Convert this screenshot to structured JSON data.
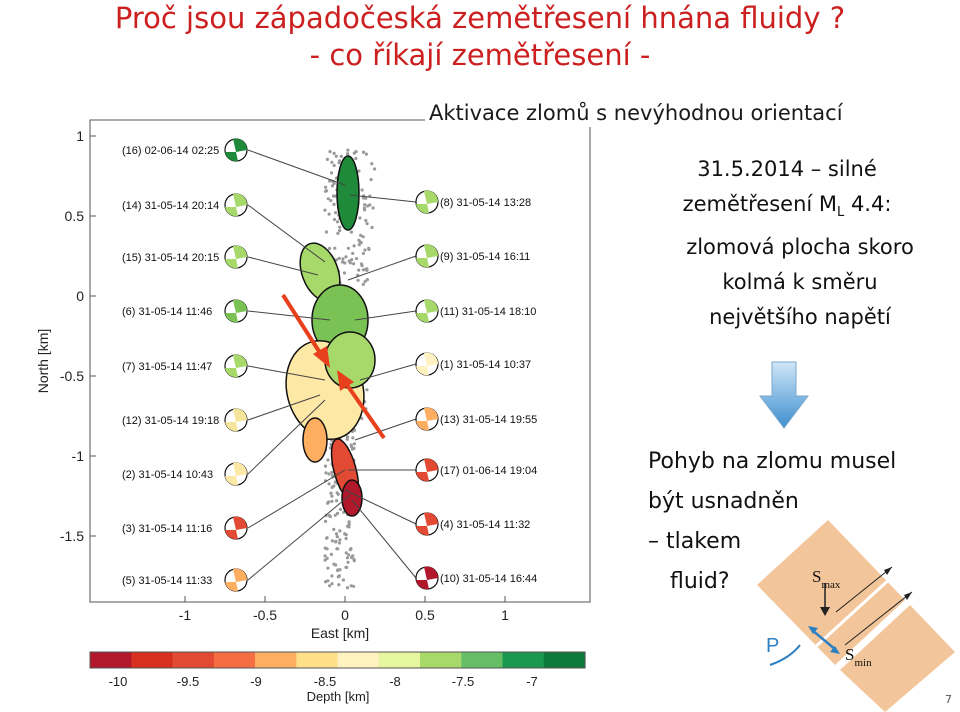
{
  "slide": {
    "title_line1": "Proč jsou západočeská zemětřesení hnána fluidy ?",
    "title_line2": "- co říkají zemětřesení -",
    "subtitle": "Aktivace zlomů s nevýhodnou orientací",
    "note_date": "31.5.2014 – silné",
    "note_mag": "zemětřesení M",
    "note_mag_sub": "L",
    "note_mag_val": " 4.4:",
    "note_desc_1": "zlomová plocha skoro",
    "note_desc_2": "kolmá k směru",
    "note_desc_3": "největšího napětí",
    "note_fluid_1": "Pohyb na zlomu musel",
    "note_fluid_2": "být usnadněn",
    "note_fluid_3": "– tlakem",
    "note_fluid_4": "fluid?",
    "page_number": "7"
  },
  "map": {
    "x_label": "East [km]",
    "y_label": "North [km]",
    "x_ticks": [
      "-1",
      "-0.5",
      "0",
      "0.5",
      "1"
    ],
    "y_ticks": [
      "1",
      "0.5",
      "0",
      "-0.5",
      "-1",
      "-1.5"
    ],
    "colorbar_label": "Depth [km]",
    "colorbar_ticks": [
      "-10",
      "-9.5",
      "-9",
      "-8.5",
      "-8",
      "-7.5",
      "-7"
    ],
    "events_left": [
      {
        "label": "(16) 02-06-14 02:25",
        "color": "#1e8a3a"
      },
      {
        "label": "(14) 31-05-14 20:14",
        "color": "#a6d96a"
      },
      {
        "label": "(15) 31-05-14 20:15",
        "color": "#a6d96a"
      },
      {
        "label": "(6) 31-05-14 11:46",
        "color": "#7bc255"
      },
      {
        "label": "(7) 31-05-14 11:47",
        "color": "#a6d96a"
      },
      {
        "label": "(12) 31-05-14 19:18",
        "color": "#f4e59b"
      },
      {
        "label": "(2) 31-05-14 10:43",
        "color": "#fee8a6"
      },
      {
        "label": "(3) 31-05-14 11:16",
        "color": "#e34a33"
      },
      {
        "label": "(5) 31-05-14 11:33",
        "color": "#fdae61"
      }
    ],
    "events_right": [
      {
        "label": "(8) 31-05-14 13:28",
        "color": "#a6d96a"
      },
      {
        "label": "(9) 31-05-14 16:11",
        "color": "#a6d96a"
      },
      {
        "label": "(11) 31-05-14 18:10",
        "color": "#a6d96a"
      },
      {
        "label": "(1) 31-05-14 10:37",
        "color": "#fff2c0"
      },
      {
        "label": "(13) 31-05-14 19:55",
        "color": "#fdae61"
      },
      {
        "label": "(17) 01-06-14 19:04",
        "color": "#e34a33"
      },
      {
        "label": "(4) 31-05-14 11:32",
        "color": "#e34a33"
      },
      {
        "label": "(10) 31-05-14 16:44",
        "color": "#b2182b"
      }
    ],
    "diagram_labels": {
      "smax": "S",
      "smax_sub": "max",
      "smin": "S",
      "smin_sub": "min",
      "p": "P"
    }
  }
}
